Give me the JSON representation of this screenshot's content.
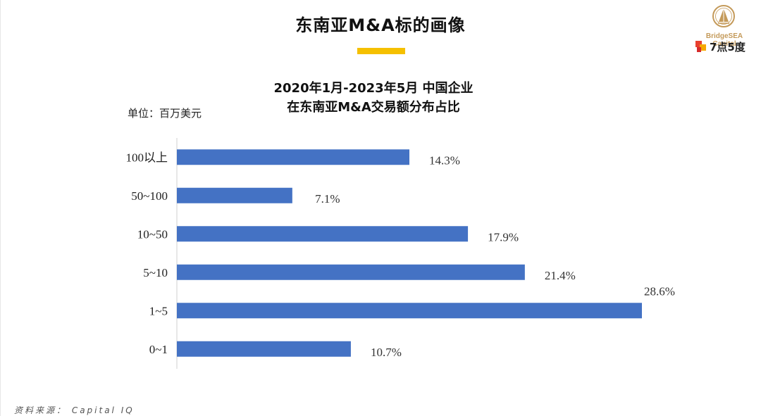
{
  "header": {
    "title": "东南亚M&A标的画像",
    "logo_text": "BridgeSEA Capital",
    "brand2_text": "7点5度",
    "accent_color": "#f5c000"
  },
  "chart_data": {
    "type": "bar",
    "orientation": "horizontal",
    "title_line1": "2020年1月-2023年5月 中国企业",
    "title_line2": "在东南亚M&A交易额分布占比",
    "unit_label": "单位：百万美元",
    "categories": [
      "100以上",
      "50~100",
      "10~50",
      "5~10",
      "1~5",
      "0~1"
    ],
    "values": [
      14.3,
      7.1,
      17.9,
      21.4,
      28.6,
      10.7
    ],
    "value_labels": [
      "14.3%",
      "7.1%",
      "17.9%",
      "21.4%",
      "28.6%",
      "10.7%"
    ],
    "value_unit": "%",
    "xlim": [
      0,
      28.6
    ],
    "bar_color": "#4472c4",
    "grid": false,
    "legend": "none"
  },
  "footer": {
    "source": "资料来源： Capital IQ"
  }
}
